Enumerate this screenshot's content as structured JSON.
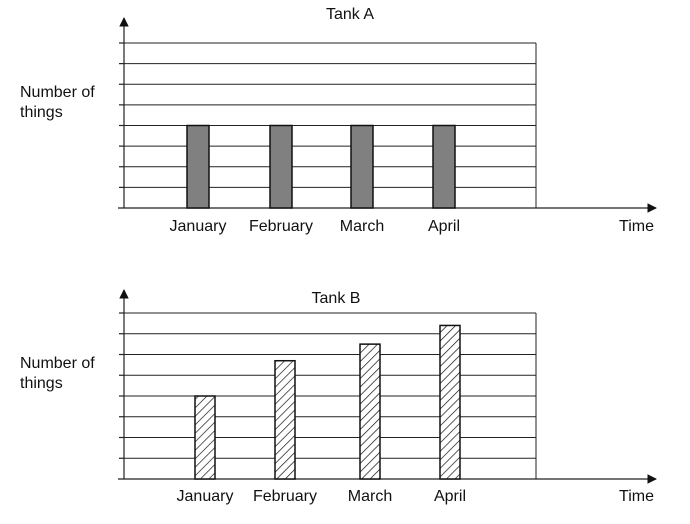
{
  "chart_data": [
    {
      "type": "bar",
      "title": "Tank A",
      "xlabel": "Time",
      "ylabel": [
        "Number of",
        "things"
      ],
      "categories": [
        "January",
        "February",
        "March",
        "April"
      ],
      "values": [
        4,
        4,
        4,
        4
      ],
      "ylim": [
        0,
        8
      ],
      "grid": true,
      "bar_fill": "solid-gray",
      "colors": {
        "bar": "#808080",
        "stroke": "#111111"
      }
    },
    {
      "type": "bar",
      "title": "Tank B",
      "xlabel": "Time",
      "ylabel": [
        "Number of",
        "things"
      ],
      "categories": [
        "January",
        "February",
        "March",
        "April"
      ],
      "values": [
        4,
        5.7,
        6.5,
        7.4
      ],
      "ylim": [
        0,
        8
      ],
      "grid": true,
      "bar_fill": "diagonal-hatch",
      "colors": {
        "bar": "#ffffff",
        "stroke": "#111111"
      }
    }
  ]
}
